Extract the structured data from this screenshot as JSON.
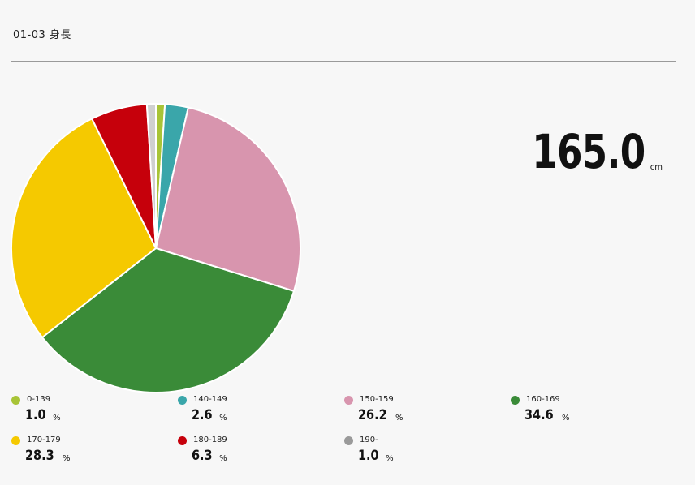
{
  "section": {
    "title": "01-03 身長"
  },
  "summary": {
    "value": "165.0",
    "unit": "cm"
  },
  "legend_unit": "%",
  "chart_data": {
    "type": "pie",
    "title": "",
    "categories": [
      "0-139",
      "140-149",
      "150-159",
      "160-169",
      "170-179",
      "180-189",
      "190-"
    ],
    "values": [
      1.0,
      2.6,
      26.2,
      34.6,
      28.3,
      6.3,
      1.0
    ],
    "value_labels": [
      "1.0",
      "2.6",
      "26.2",
      "34.6",
      "28.3",
      "6.3",
      "1.0"
    ],
    "colors": [
      "#a8c437",
      "#3aa6aa",
      "#d895ae",
      "#3a8b38",
      "#f5c900",
      "#c6000b",
      "#d0d0d0"
    ],
    "legend_colors": [
      "#a8c437",
      "#3aa6aa",
      "#d895ae",
      "#3a8b38",
      "#f5c900",
      "#c6000b",
      "#9a9a9a"
    ],
    "start": "top",
    "direction": "clockwise",
    "legend_position": "bottom"
  }
}
